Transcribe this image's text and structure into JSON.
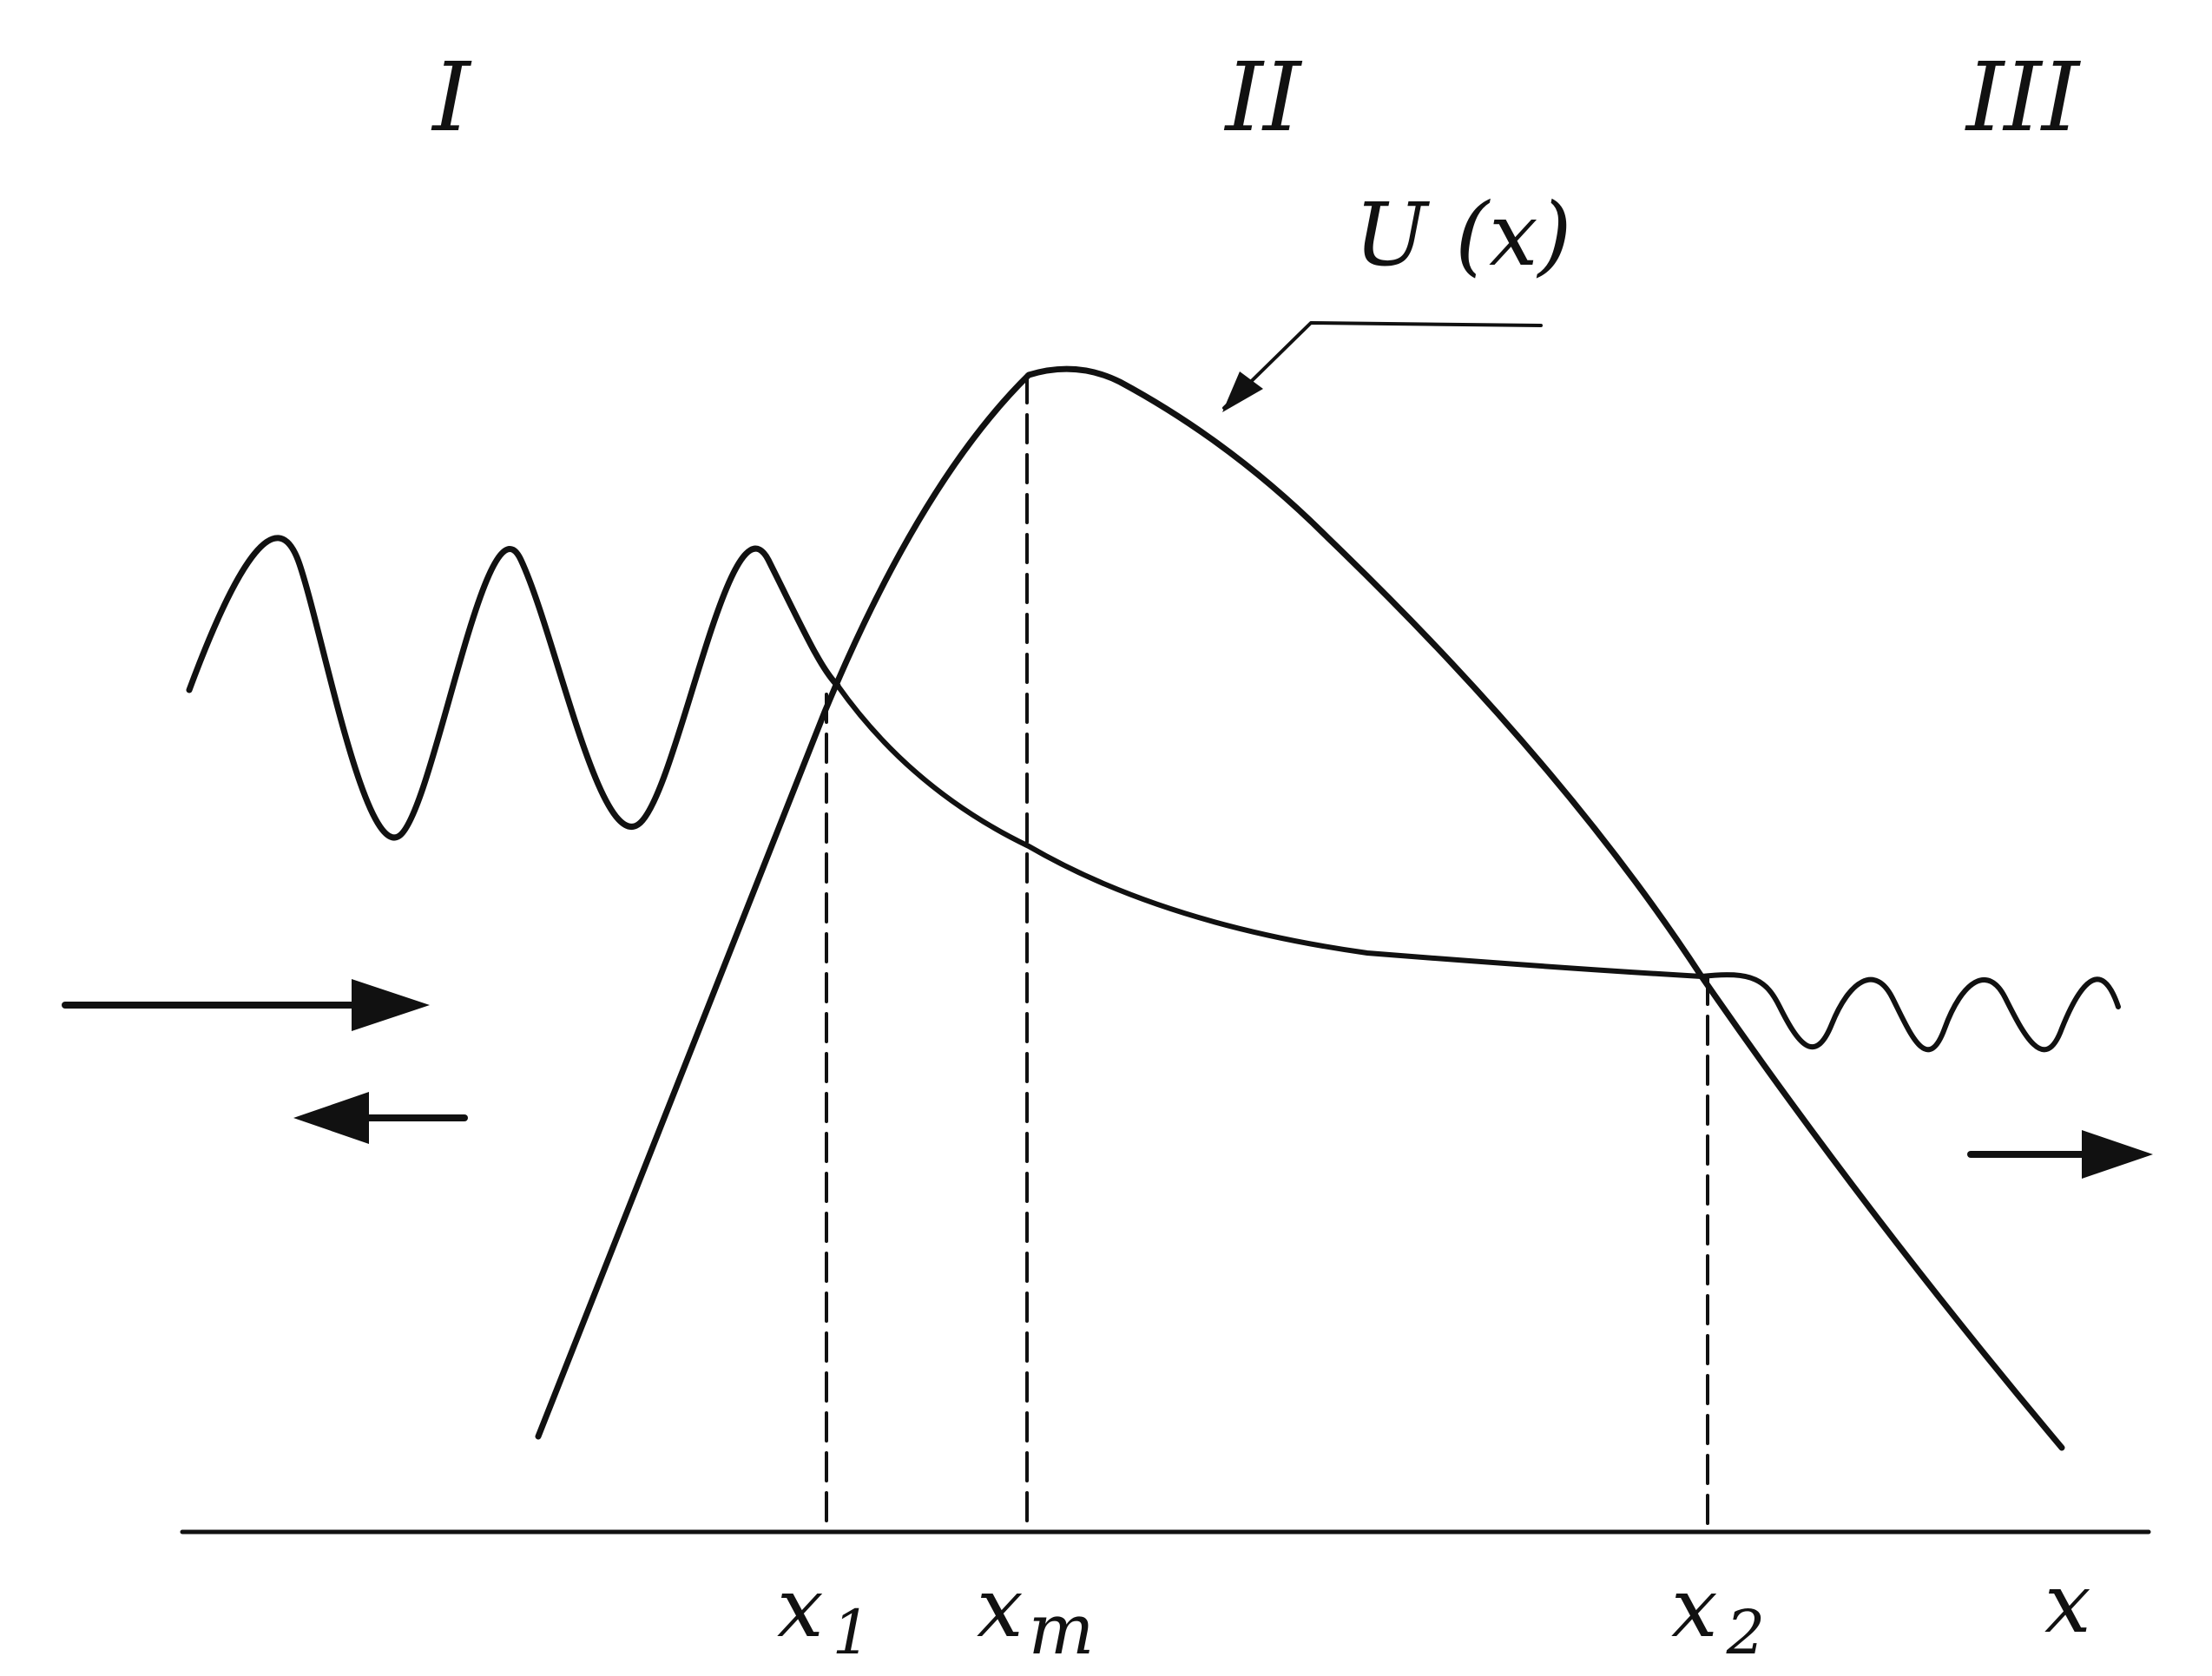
{
  "regions": [
    {
      "label": "I"
    },
    {
      "label": "II"
    },
    {
      "label": "III"
    }
  ],
  "curve_label": "U (x)",
  "axis": {
    "x_label": "x",
    "points": [
      {
        "name": "x1",
        "base": "x",
        "sub": "1"
      },
      {
        "name": "xm",
        "base": "x",
        "sub": "m"
      },
      {
        "name": "x2",
        "base": "x",
        "sub": "2"
      }
    ]
  },
  "colors": {
    "ink": "#111111",
    "paper": "#ffffff"
  },
  "arrows": [
    {
      "name": "incident-wave-arrow",
      "direction": "right"
    },
    {
      "name": "reflected-wave-arrow",
      "direction": "left"
    },
    {
      "name": "transmitted-wave-arrow",
      "direction": "right"
    }
  ]
}
